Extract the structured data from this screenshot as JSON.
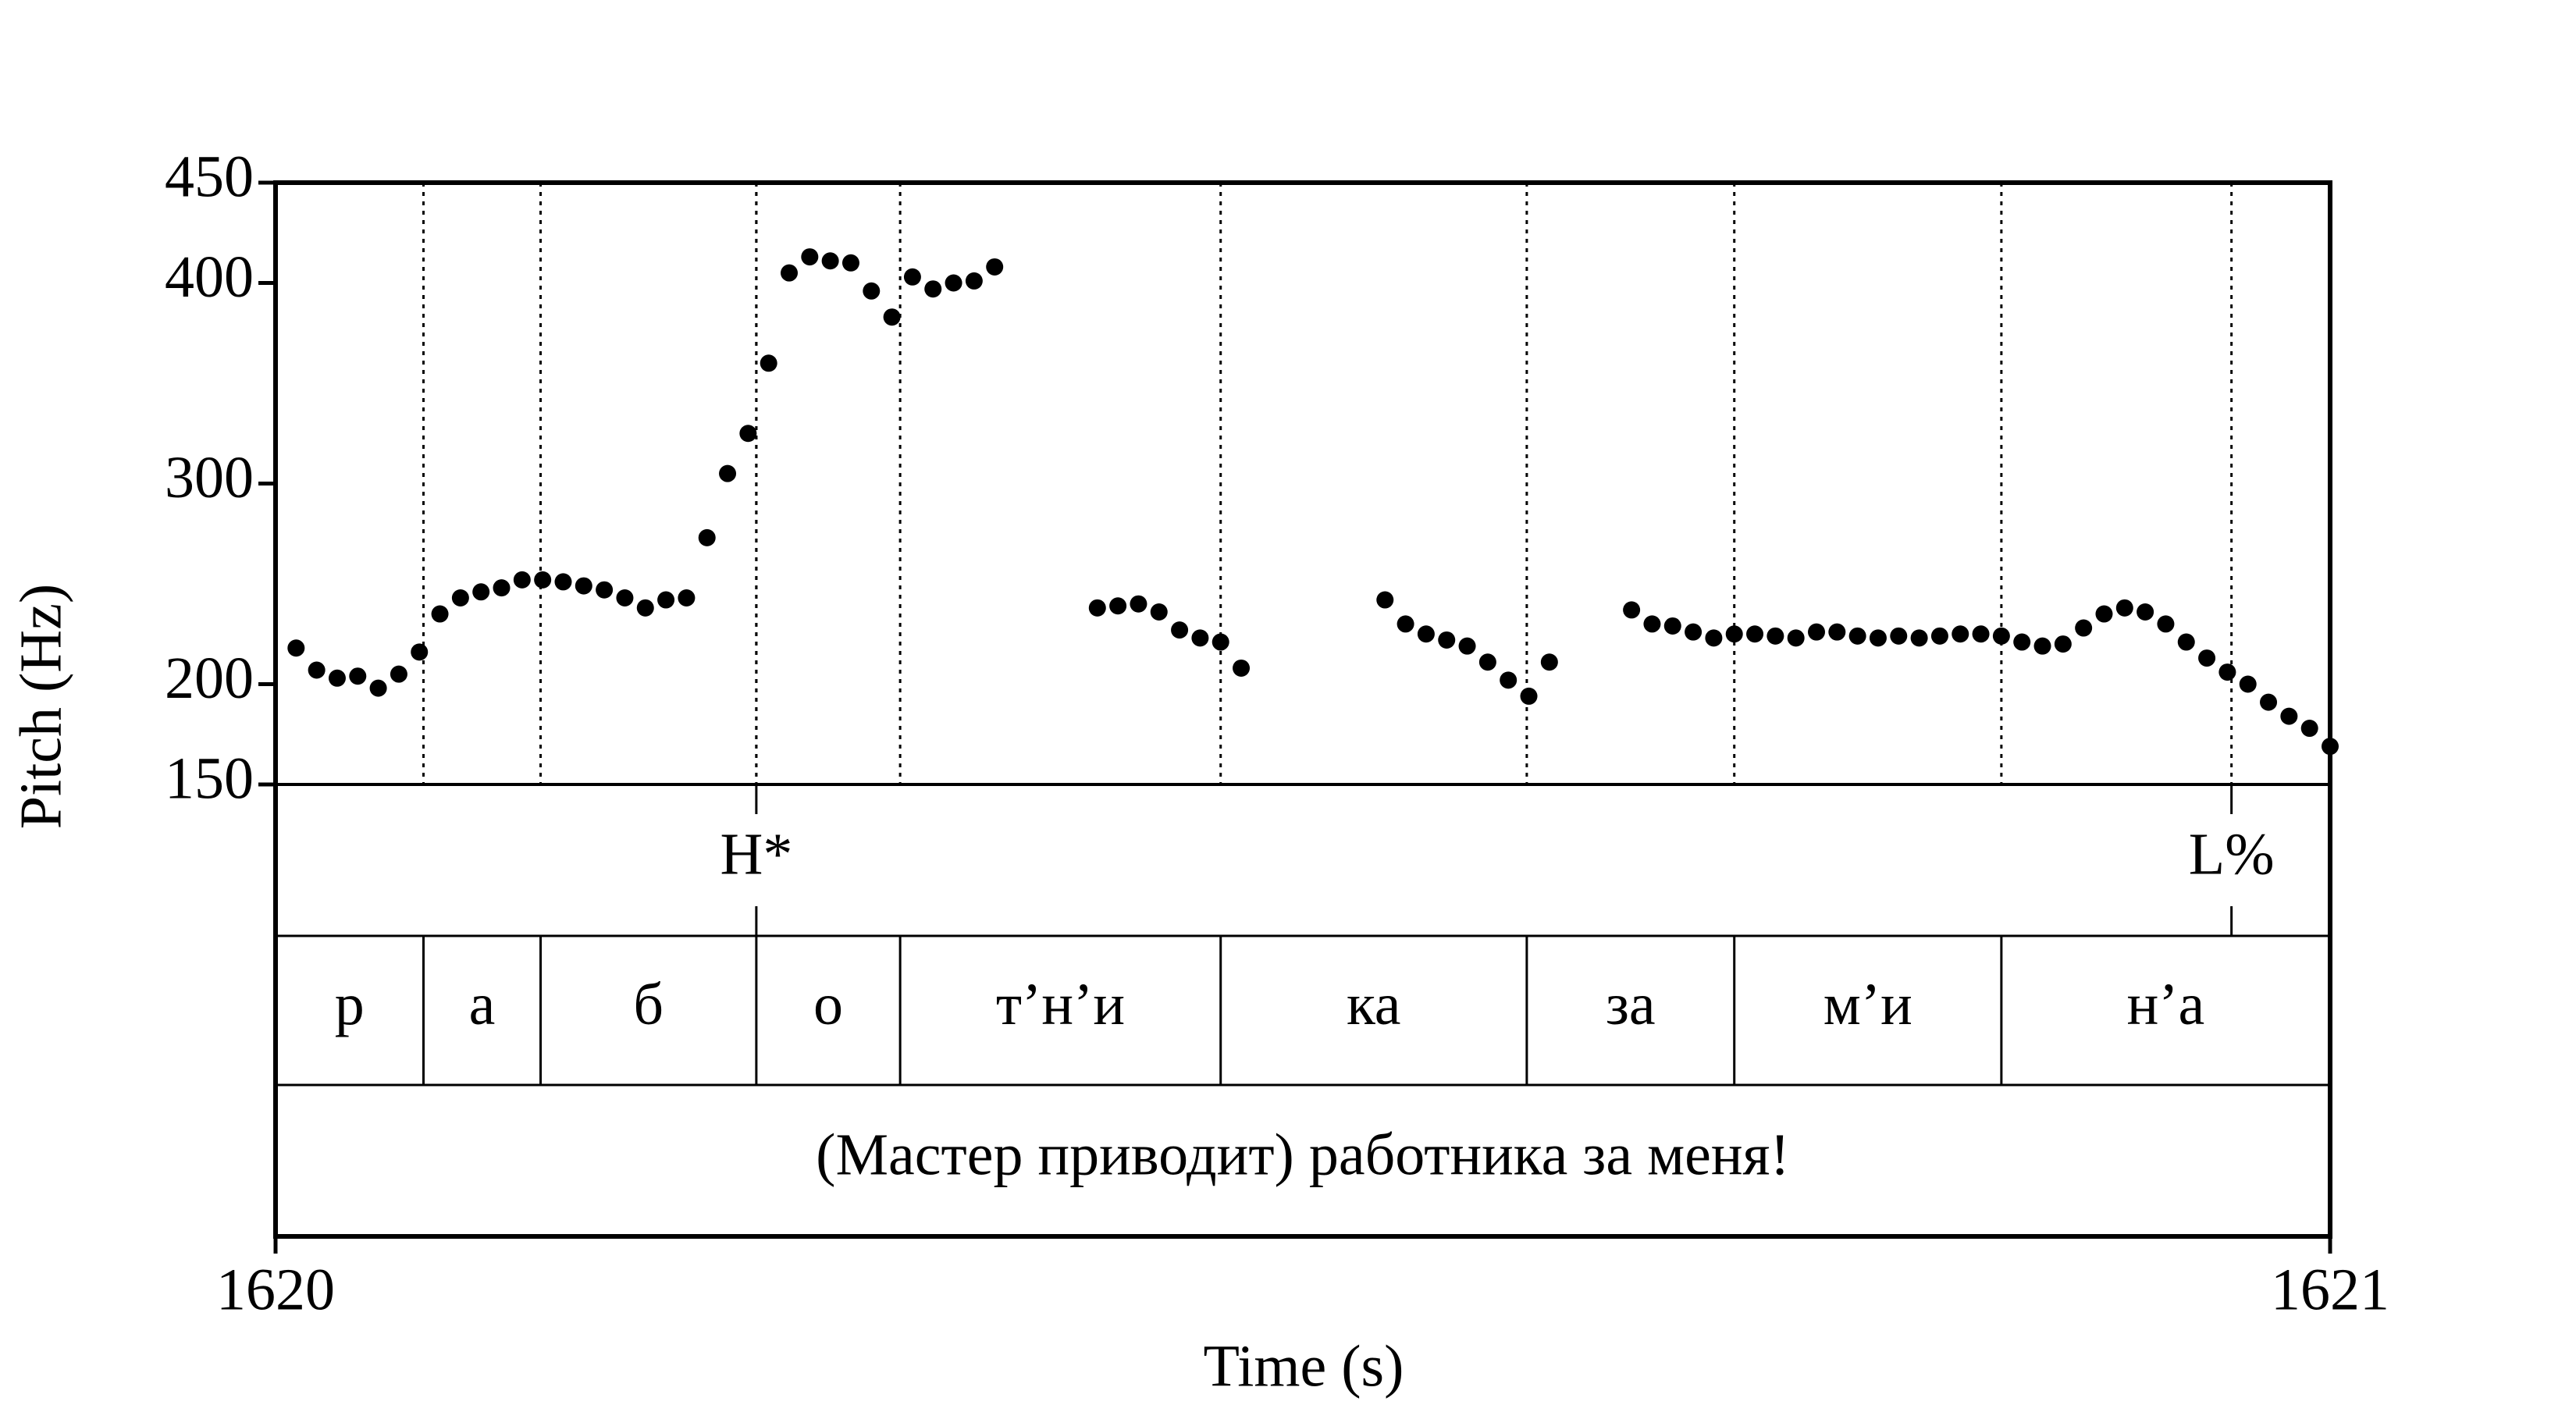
{
  "chart_data": {
    "type": "scatter",
    "x_label": "Time (s)",
    "y_label": "Pitch (Hz)",
    "color": "#000000",
    "xlim": [
      1620,
      1621
    ],
    "xticks": [
      1620,
      1621
    ],
    "ylim": [
      150,
      450
    ],
    "yticks": [
      150,
      200,
      300,
      400,
      450
    ],
    "x": [
      1620.01,
      1620.02,
      1620.03,
      1620.04,
      1620.05,
      1620.06,
      1620.07,
      1620.08,
      1620.09,
      1620.1,
      1620.11,
      1620.12,
      1620.13,
      1620.14,
      1620.15,
      1620.16,
      1620.17,
      1620.18,
      1620.19,
      1620.2,
      1620.21,
      1620.22,
      1620.23,
      1620.24,
      1620.25,
      1620.26,
      1620.27,
      1620.28,
      1620.29,
      1620.3,
      1620.31,
      1620.32,
      1620.33,
      1620.34,
      1620.35,
      1620.4,
      1620.41,
      1620.42,
      1620.43,
      1620.44,
      1620.45,
      1620.46,
      1620.47,
      1620.54,
      1620.55,
      1620.56,
      1620.57,
      1620.58,
      1620.59,
      1620.6,
      1620.61,
      1620.62,
      1620.66,
      1620.67,
      1620.68,
      1620.69,
      1620.7,
      1620.71,
      1620.72,
      1620.73,
      1620.74,
      1620.75,
      1620.76,
      1620.77,
      1620.78,
      1620.79,
      1620.8,
      1620.81,
      1620.82,
      1620.83,
      1620.84,
      1620.85,
      1620.86,
      1620.87,
      1620.88,
      1620.89,
      1620.9,
      1620.91,
      1620.92,
      1620.93,
      1620.94,
      1620.95,
      1620.96,
      1620.97,
      1620.98,
      1620.99,
      1621.0
    ],
    "values": [
      218,
      207,
      203,
      204,
      198,
      205,
      216,
      235,
      243,
      246,
      248,
      252,
      252,
      251,
      249,
      247,
      243,
      238,
      242,
      243,
      273,
      305,
      325,
      360,
      405,
      413,
      411,
      410,
      396,
      383,
      403,
      397,
      400,
      401,
      408,
      238,
      239,
      240,
      236,
      227,
      223,
      221,
      208,
      242,
      230,
      225,
      222,
      219,
      211,
      202,
      194,
      211,
      237,
      230,
      229,
      226,
      223,
      225,
      225,
      224,
      223,
      226,
      226,
      224,
      223,
      224,
      223,
      224,
      225,
      225,
      224,
      221,
      219,
      220,
      228,
      235,
      238,
      236,
      230,
      221,
      213,
      206,
      200,
      191,
      184,
      178,
      169
    ],
    "tiers": [
      {
        "type": "point",
        "points": [
          {
            "time": 1620.234,
            "label": "H*"
          },
          {
            "time": 1620.952,
            "label": "L%"
          }
        ]
      },
      {
        "type": "interval",
        "boundaries": [
          1620.072,
          1620.129,
          1620.234,
          1620.304,
          1620.46,
          1620.609,
          1620.71,
          1620.84
        ],
        "labels": [
          "р",
          "а",
          "б",
          "о",
          "т’н’и",
          "ка",
          "за",
          "м’и",
          "н’а"
        ]
      },
      {
        "type": "interval",
        "boundaries": [],
        "labels": [
          "(Мастер приводит) работника за меня!"
        ]
      }
    ]
  }
}
